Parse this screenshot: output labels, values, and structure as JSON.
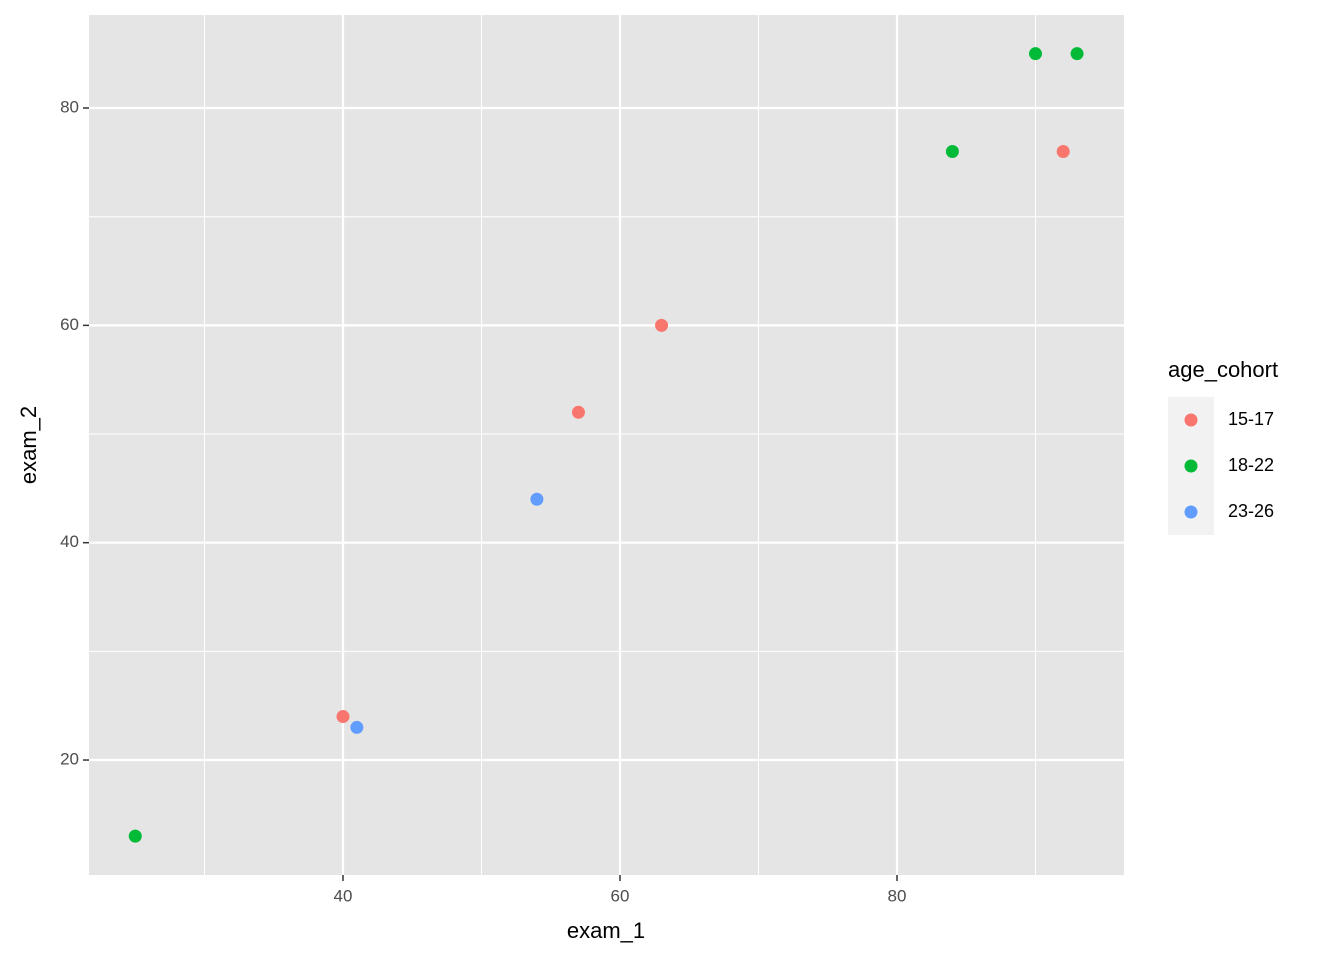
{
  "chart_data": {
    "type": "scatter",
    "x_label": "exam_1",
    "y_label": "exam_2",
    "legend_title": "age_cohort",
    "legend_position": "right",
    "grid": true,
    "xlim": [
      21.66,
      96.39
    ],
    "ylim": [
      9.42,
      88.56
    ],
    "xticks": [
      40,
      60,
      80
    ],
    "yticks": [
      20,
      40,
      60,
      80
    ],
    "x_minor_breaks": [
      30,
      50,
      70,
      90
    ],
    "y_minor_breaks": [
      30,
      50,
      70
    ],
    "series": [
      {
        "name": "15-17",
        "color": "#F8766D",
        "x": [
          40,
          57,
          63,
          92
        ],
        "values": [
          24,
          52,
          60,
          76
        ]
      },
      {
        "name": "18-22",
        "color": "#00BA38",
        "x": [
          25,
          84,
          90,
          93
        ],
        "values": [
          13,
          76,
          85,
          85
        ]
      },
      {
        "name": "23-26",
        "color": "#619CFF",
        "x": [
          41,
          54
        ],
        "values": [
          23,
          44
        ]
      }
    ]
  }
}
